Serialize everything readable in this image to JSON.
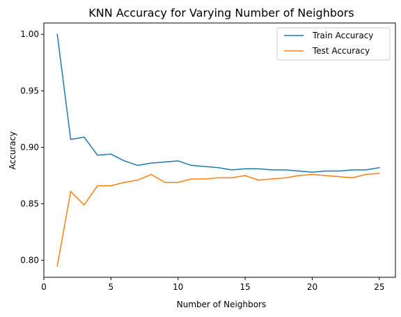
{
  "chart_data": {
    "type": "line",
    "title": "KNN Accuracy for Varying Number of Neighbors",
    "xlabel": "Number of Neighbors",
    "ylabel": "Accuracy",
    "xlim": [
      0,
      26.2
    ],
    "ylim": [
      0.785,
      1.01
    ],
    "xticks": [
      0,
      5,
      10,
      15,
      20,
      25
    ],
    "yticks": [
      0.8,
      0.85,
      0.9,
      0.95,
      1.0
    ],
    "xtick_labels": [
      "0",
      "5",
      "10",
      "15",
      "20",
      "25"
    ],
    "ytick_labels": [
      "0.80",
      "0.85",
      "0.90",
      "0.95",
      "1.00"
    ],
    "grid": false,
    "legend_position": "top-right",
    "x": [
      1,
      2,
      3,
      4,
      5,
      6,
      7,
      8,
      9,
      10,
      11,
      12,
      13,
      14,
      15,
      16,
      17,
      18,
      19,
      20,
      21,
      22,
      23,
      24,
      25
    ],
    "series": [
      {
        "name": "Train Accuracy",
        "color": "#1f77b4",
        "values": [
          1.0,
          0.907,
          0.909,
          0.893,
          0.894,
          0.888,
          0.884,
          0.886,
          0.887,
          0.888,
          0.884,
          0.883,
          0.882,
          0.88,
          0.881,
          0.881,
          0.88,
          0.88,
          0.879,
          0.878,
          0.879,
          0.879,
          0.88,
          0.88,
          0.882
        ]
      },
      {
        "name": "Test Accuracy",
        "color": "#ff7f0e",
        "values": [
          0.795,
          0.861,
          0.849,
          0.866,
          0.866,
          0.869,
          0.871,
          0.876,
          0.869,
          0.869,
          0.872,
          0.872,
          0.873,
          0.873,
          0.875,
          0.871,
          0.872,
          0.873,
          0.875,
          0.876,
          0.875,
          0.874,
          0.873,
          0.876,
          0.877
        ]
      }
    ]
  }
}
